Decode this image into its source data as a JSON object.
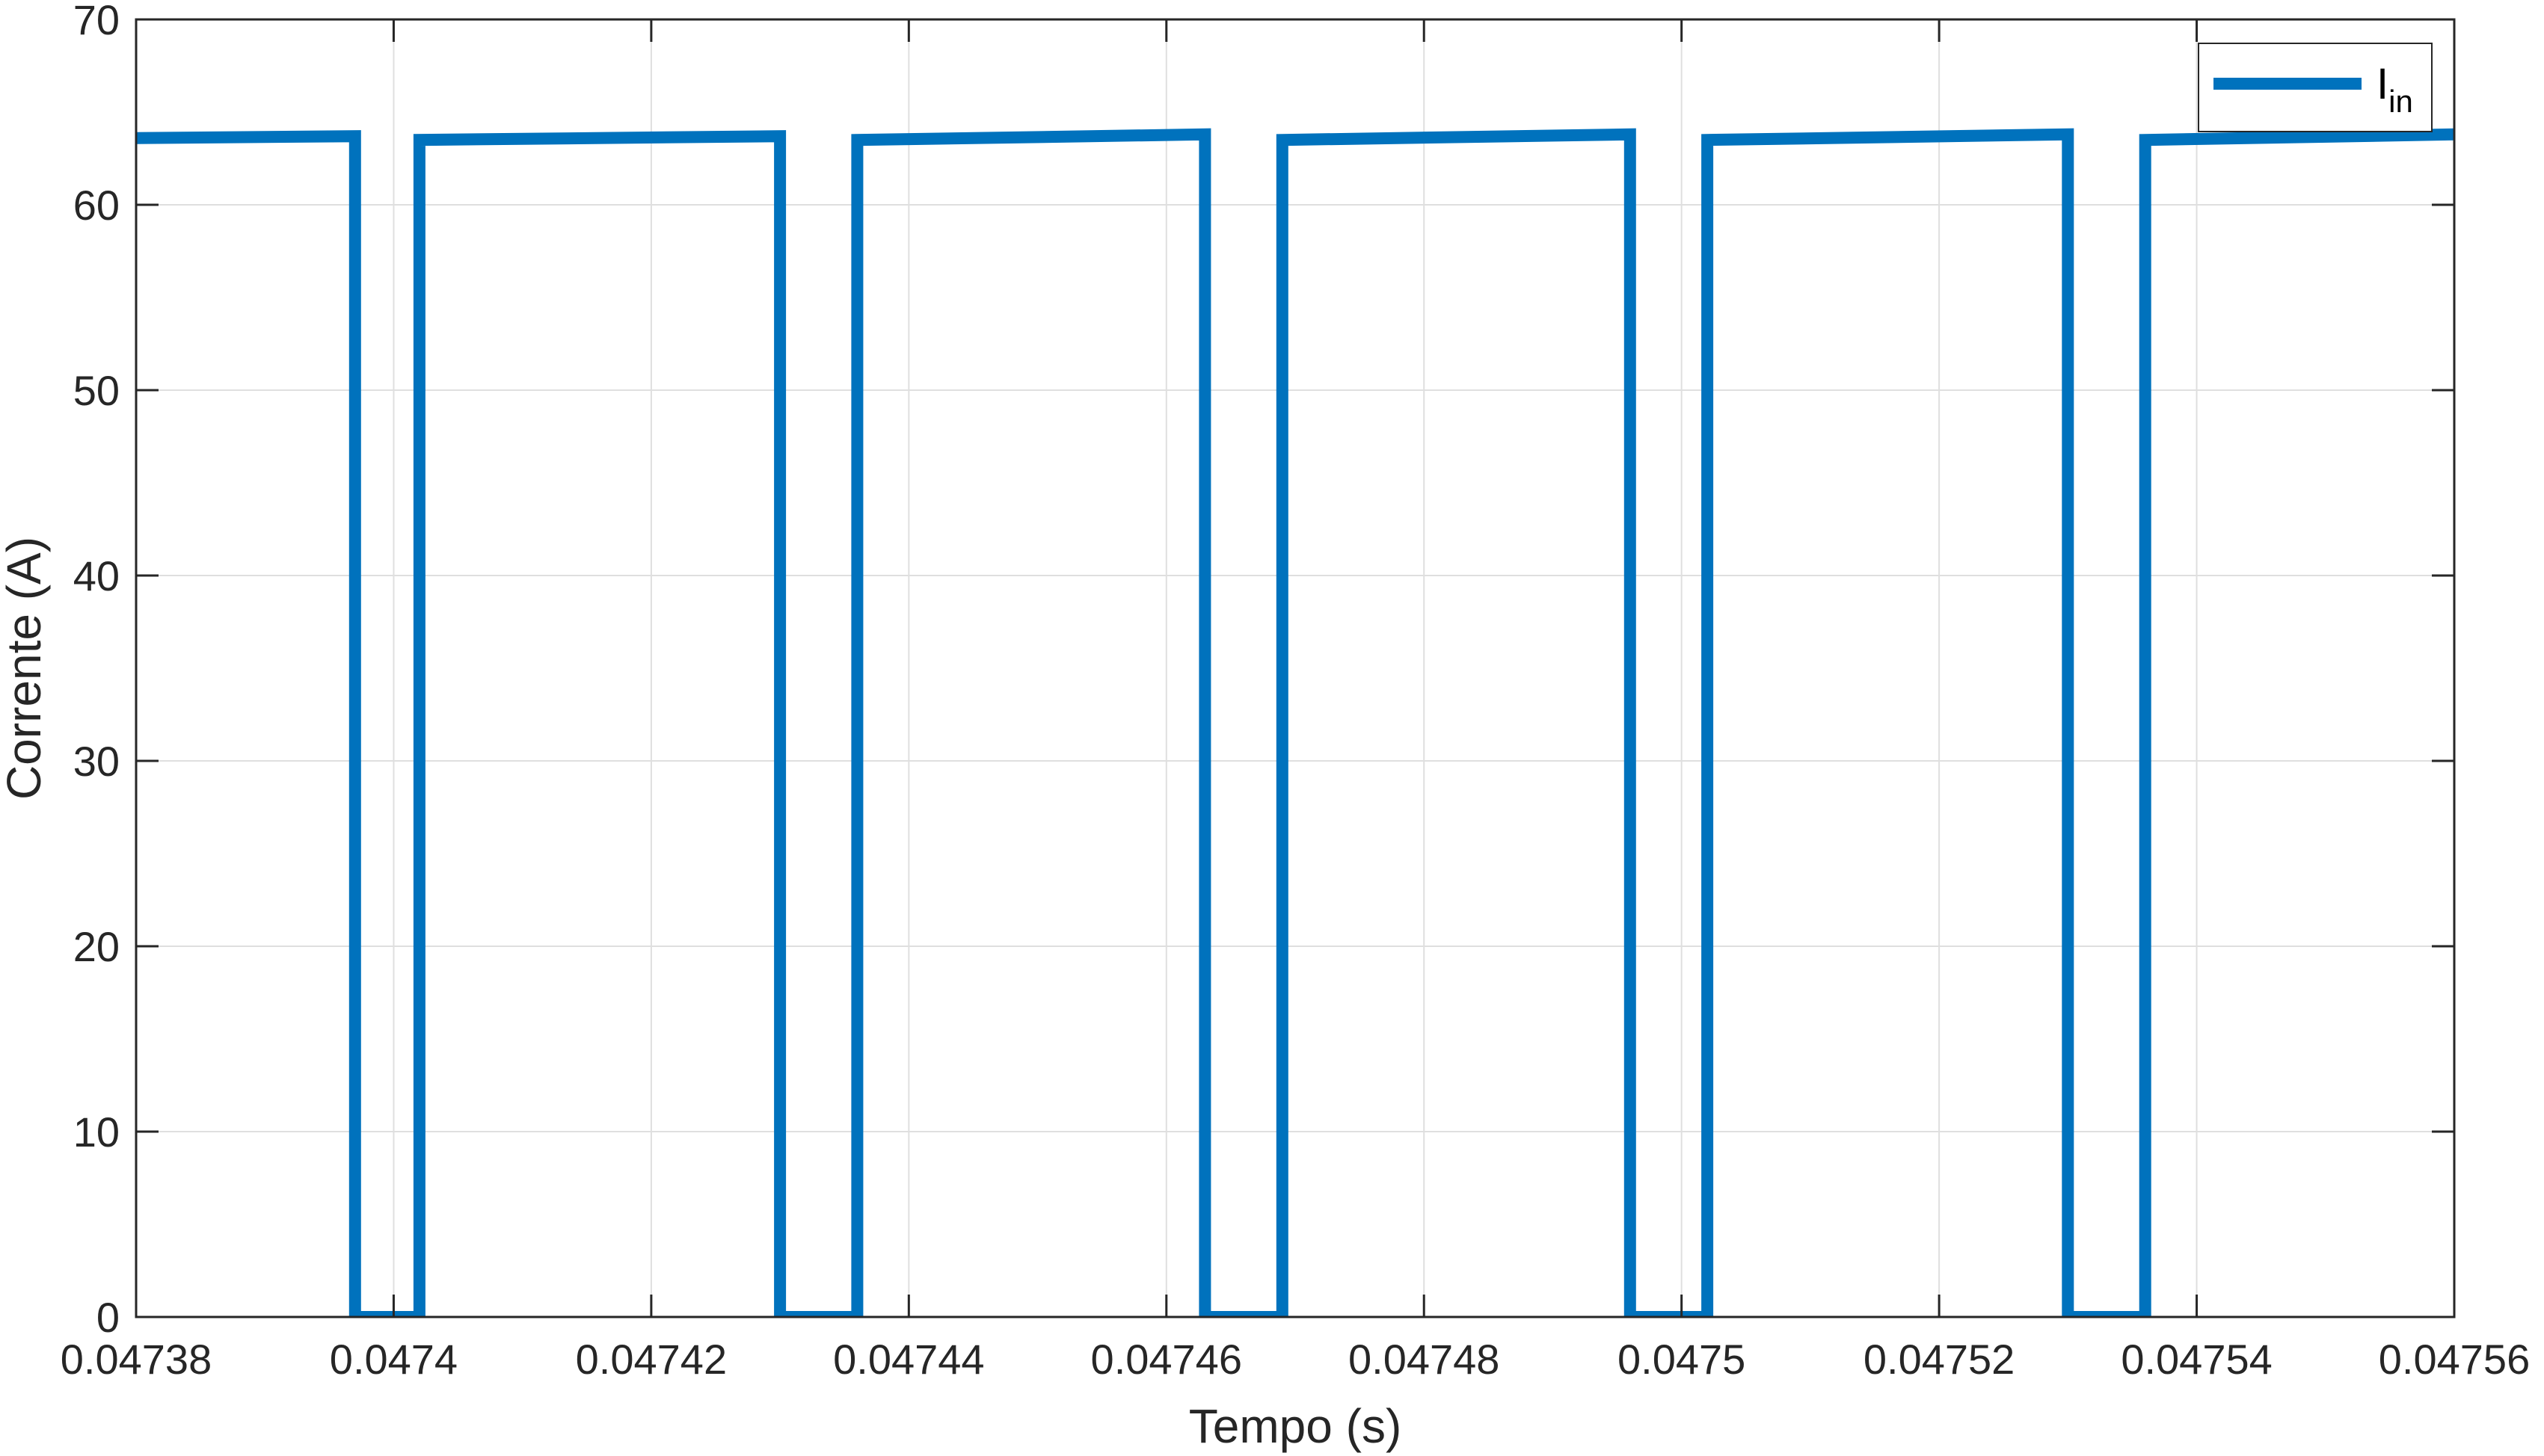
{
  "chart_data": {
    "type": "line",
    "title": "",
    "xlabel": "Tempo (s)",
    "ylabel": "Corrente (A)",
    "xlim": [
      0.04738,
      0.04756
    ],
    "ylim": [
      0,
      70
    ],
    "xticks": [
      0.04738,
      0.0474,
      0.04742,
      0.04744,
      0.04746,
      0.04748,
      0.0475,
      0.04752,
      0.04754,
      0.04756
    ],
    "xtick_labels": [
      "0.04738",
      "0.0474",
      "0.04742",
      "0.04744",
      "0.04746",
      "0.04748",
      "0.0475",
      "0.04752",
      "0.04754",
      "0.04756"
    ],
    "yticks": [
      0,
      10,
      20,
      30,
      40,
      50,
      60,
      70
    ],
    "ytick_labels": [
      "0",
      "10",
      "20",
      "30",
      "40",
      "50",
      "60",
      "70"
    ],
    "grid": true,
    "legend_position": "top-right",
    "colors": {
      "series": "#0072BD",
      "axis": "#262626",
      "grid": "#DFDFDF"
    },
    "series": [
      {
        "name": "I",
        "name_subscript": "in",
        "x": [
          0.04738,
          0.047397,
          0.047397,
          0.047402,
          0.047402,
          0.04743,
          0.04743,
          0.047436,
          0.047436,
          0.047463,
          0.047463,
          0.047469,
          0.047469,
          0.047496,
          0.047496,
          0.047502,
          0.047502,
          0.04753,
          0.04753,
          0.047536,
          0.047536,
          0.04756
        ],
        "y": [
          63.6,
          63.7,
          0,
          0,
          63.5,
          63.7,
          0,
          0,
          63.5,
          63.8,
          0,
          0,
          63.5,
          63.8,
          0,
          0,
          63.5,
          63.8,
          0,
          0,
          63.5,
          63.8
        ]
      }
    ]
  }
}
